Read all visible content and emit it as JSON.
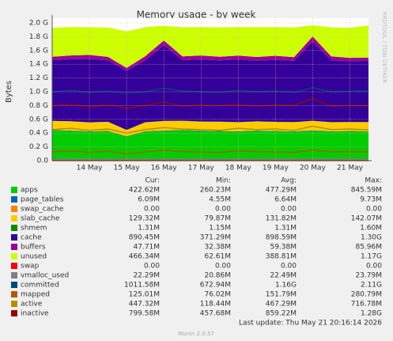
{
  "chart_data": {
    "type": "stacked-area",
    "title": "Memory usage - by week",
    "y_label": "Bytes",
    "side_text": "RRDTOOL / TOBI OETIKER",
    "footer": "Last update: Thu May 21 20:16:14 2026",
    "credit": "Munin 2.0.57",
    "stats_headers": [
      "Cur:",
      "Min:",
      "Avg:",
      "Max:"
    ],
    "grid": true,
    "ylim": [
      0,
      2000000000
    ],
    "yticks": [
      {
        "value": 0,
        "label": "0.0"
      },
      {
        "value": 200000000,
        "label": "0.2 G"
      },
      {
        "value": 400000000,
        "label": "0.4 G"
      },
      {
        "value": 600000000,
        "label": "0.6 G"
      },
      {
        "value": 800000000,
        "label": "0.8 G"
      },
      {
        "value": 1000000000,
        "label": "1.0 G"
      },
      {
        "value": 1200000000,
        "label": "1.2 G"
      },
      {
        "value": 1400000000,
        "label": "1.4 G"
      },
      {
        "value": 1600000000,
        "label": "1.6 G"
      },
      {
        "value": 1800000000,
        "label": "1.8 G"
      },
      {
        "value": 2000000000,
        "label": "2.0 G"
      }
    ],
    "categories": [
      null,
      null,
      "14 May",
      null,
      "15 May",
      null,
      "16 May",
      null,
      "17 May",
      null,
      "18 May",
      null,
      "19 May",
      null,
      "20 May",
      null,
      "21 May",
      null
    ],
    "series": [
      {
        "name": "apps",
        "color": "#00cc00",
        "stack": true,
        "stats": [
          "422.62M",
          "260.23M",
          "477.29M",
          "845.59M"
        ],
        "values": [
          440000000.0,
          430000000.0,
          420000000.0,
          425000000.0,
          350000000.0,
          420000000.0,
          430000000.0,
          440000000.0,
          430000000.0,
          425000000.0,
          420000000.0,
          430000000.0,
          425000000.0,
          420000000.0,
          430000000.0,
          420000000.0,
          425000000.0,
          423000000.0
        ]
      },
      {
        "name": "page_tables",
        "color": "#0066b3",
        "stack": true,
        "stats": [
          "6.09M",
          "4.55M",
          "6.64M",
          "9.73M"
        ],
        "values": [
          6500000.0,
          6600000.0,
          6500000.0,
          6400000.0,
          5000000.0,
          6500000.0,
          7000000.0,
          6600000.0,
          6500000.0,
          6600000.0,
          6700000.0,
          6500000.0,
          6600000.0,
          6500000.0,
          7500000.0,
          6400000.0,
          6300000.0,
          6100000.0
        ]
      },
      {
        "name": "swap_cache",
        "color": "#ff8000",
        "stack": true,
        "stats": [
          "0.00",
          "0.00",
          "0.00",
          "0.00"
        ],
        "values": [
          0,
          0,
          0,
          0,
          0,
          0,
          0,
          0,
          0,
          0,
          0,
          0,
          0,
          0,
          0,
          0,
          0,
          0
        ]
      },
      {
        "name": "slab_cache",
        "color": "#ffcc00",
        "stack": true,
        "stats": [
          "129.32M",
          "79.87M",
          "131.82M",
          "142.07M"
        ],
        "values": [
          130000000.0,
          135000000.0,
          128000000.0,
          132000000.0,
          90000000.0,
          130000000.0,
          138000000.0,
          132000000.0,
          130000000.0,
          134000000.0,
          131000000.0,
          133000000.0,
          130000000.0,
          132000000.0,
          140000000.0,
          131000000.0,
          130000000.0,
          129000000.0
        ]
      },
      {
        "name": "shmem",
        "color": "#008f00",
        "stack": true,
        "stats": [
          "1.31M",
          "1.15M",
          "1.31M",
          "1.60M"
        ],
        "values": [
          1300000.0,
          1300000.0,
          1300000.0,
          1300000.0,
          1200000.0,
          1300000.0,
          1500000.0,
          1300000.0,
          1300000.0,
          1300000.0,
          1300000.0,
          1300000.0,
          1300000.0,
          1300000.0,
          1500000.0,
          1300000.0,
          1300000.0,
          1300000.0
        ]
      },
      {
        "name": "cache",
        "color": "#330099",
        "stack": true,
        "stats": [
          "890.45M",
          "371.29M",
          "898.59M",
          "1.30G"
        ],
        "values": [
          880000000.0,
          900000000.0,
          920000000.0,
          890000000.0,
          860000000.0,
          900000000.0,
          1100000000.0,
          880000000.0,
          900000000.0,
          890000000.0,
          910000000.0,
          880000000.0,
          900000000.0,
          890000000.0,
          1150000000.0,
          900000000.0,
          880000000.0,
          890000000.0
        ]
      },
      {
        "name": "buffers",
        "color": "#990099",
        "stack": true,
        "stats": [
          "47.71M",
          "32.38M",
          "59.38M",
          "85.96M"
        ],
        "values": [
          50000000.0,
          55000000.0,
          60000000.0,
          52000000.0,
          40000000.0,
          58000000.0,
          70000000.0,
          55000000.0,
          60000000.0,
          52000000.0,
          58000000.0,
          55000000.0,
          60000000.0,
          52000000.0,
          75000000.0,
          55000000.0,
          50000000.0,
          48000000.0
        ]
      },
      {
        "name": "unused",
        "color": "#ccff00",
        "stack": true,
        "stats": [
          "466.34M",
          "62.61M",
          "388.81M",
          "1.17G"
        ],
        "values": [
          422000000.0,
          412000000.0,
          402000000.0,
          427000000.0,
          532000000.0,
          422000000.0,
          212000000.0,
          422000000.0,
          412000000.0,
          427000000.0,
          412000000.0,
          432000000.0,
          417000000.0,
          432000000.0,
          162000000.0,
          422000000.0,
          437000000.0,
          466000000.0
        ]
      },
      {
        "name": "swap",
        "color": "#ff0000",
        "stack": false,
        "stats": [
          "0.00",
          "0.00",
          "0.00",
          "0.00"
        ],
        "values": [
          0,
          0,
          0,
          0,
          0,
          0,
          0,
          0,
          0,
          0,
          0,
          0,
          0,
          0,
          0,
          0,
          0,
          0
        ]
      },
      {
        "name": "vmalloc_used",
        "color": "#808080",
        "stack": false,
        "stats": [
          "22.29M",
          "20.86M",
          "22.49M",
          "23.79M"
        ],
        "values": [
          22000000.0,
          22500000.0,
          22000000.0,
          23000000.0,
          21000000.0,
          22000000.0,
          23500000.0,
          22500000.0,
          22000000.0,
          22500000.0,
          22800000.0,
          22400000.0,
          22500000.0,
          22000000.0,
          23700000.0,
          22600000.0,
          22400000.0,
          22300000.0
        ]
      },
      {
        "name": "committed",
        "color": "#00487d",
        "stack": false,
        "stats": [
          "1011.58M",
          "672.94M",
          "1.16G",
          "2.11G"
        ],
        "values": [
          1000000000.0,
          1020000000.0,
          990000000.0,
          1010000000.0,
          980000000.0,
          1000000000.0,
          1050000000.0,
          1010000000.0,
          1000000000.0,
          990000000.0,
          1020000000.0,
          1000000000.0,
          1010000000.0,
          990000000.0,
          1060000000.0,
          1000000000.0,
          1010000000.0,
          1012000000.0
        ]
      },
      {
        "name": "mapped",
        "color": "#b35a00",
        "stack": false,
        "stats": [
          "125.01M",
          "76.02M",
          "151.79M",
          "280.79M"
        ],
        "values": [
          130000000.0,
          140000000.0,
          120000000.0,
          135000000.0,
          100000000.0,
          125000000.0,
          150000000.0,
          130000000.0,
          125000000.0,
          120000000.0,
          140000000.0,
          130000000.0,
          125000000.0,
          120000000.0,
          150000000.0,
          125000000.0,
          130000000.0,
          125000000.0
        ]
      },
      {
        "name": "active",
        "color": "#b38f00",
        "stack": false,
        "stats": [
          "447.32M",
          "118.44M",
          "467.29M",
          "716.78M"
        ],
        "values": [
          450000000.0,
          470000000.0,
          440000000.0,
          460000000.0,
          400000000.0,
          450000000.0,
          480000000.0,
          460000000.0,
          450000000.0,
          440000000.0,
          470000000.0,
          450000000.0,
          460000000.0,
          440000000.0,
          500000000.0,
          450000000.0,
          460000000.0,
          447000000.0
        ]
      },
      {
        "name": "inactive",
        "color": "#990000",
        "stack": false,
        "stats": [
          "799.58M",
          "457.68M",
          "859.22M",
          "1.28G"
        ],
        "values": [
          800000000.0,
          820000000.0,
          780000000.0,
          810000000.0,
          760000000.0,
          800000000.0,
          850000000.0,
          790000000.0,
          810000000.0,
          800000000.0,
          820000000.0,
          790000000.0,
          810000000.0,
          800000000.0,
          900000000.0,
          790000000.0,
          800000000.0,
          800000000.0
        ]
      }
    ]
  }
}
